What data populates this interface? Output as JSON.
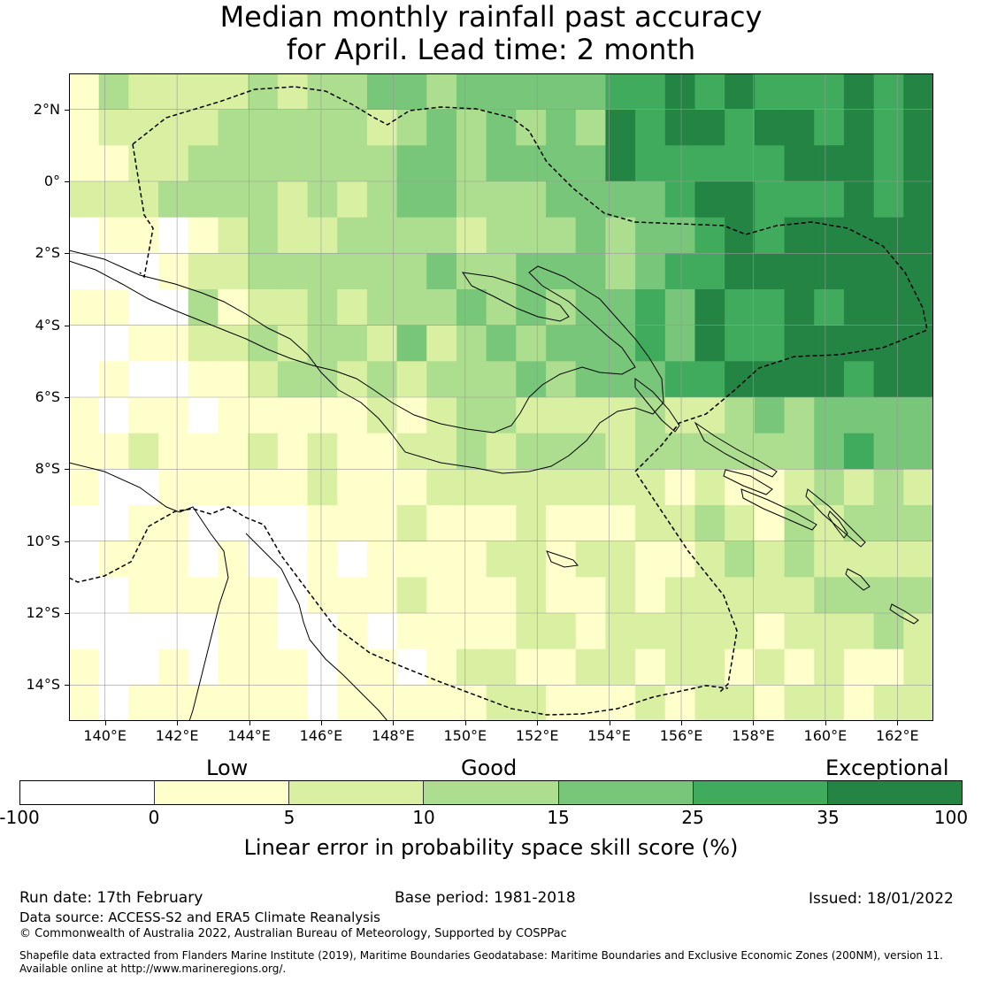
{
  "title": {
    "line1": "Median monthly rainfall past accuracy",
    "line2": "for April. Lead time: 2 month"
  },
  "map": {
    "lon_range": [
      139,
      163
    ],
    "lat_range": [
      -15,
      3
    ],
    "cell_size_deg": 0.833,
    "x_ticks": [
      {
        "value": 140,
        "label": "140°E"
      },
      {
        "value": 142,
        "label": "142°E"
      },
      {
        "value": 144,
        "label": "144°E"
      },
      {
        "value": 146,
        "label": "146°E"
      },
      {
        "value": 148,
        "label": "148°E"
      },
      {
        "value": 150,
        "label": "150°E"
      },
      {
        "value": 152,
        "label": "152°E"
      },
      {
        "value": 154,
        "label": "154°E"
      },
      {
        "value": 156,
        "label": "156°E"
      },
      {
        "value": 158,
        "label": "158°E"
      },
      {
        "value": 160,
        "label": "160°E"
      },
      {
        "value": 162,
        "label": "162°E"
      }
    ],
    "y_ticks": [
      {
        "value": 2,
        "label": "2°N"
      },
      {
        "value": 0,
        "label": "0°"
      },
      {
        "value": -2,
        "label": "2°S"
      },
      {
        "value": -4,
        "label": "4°S"
      },
      {
        "value": -6,
        "label": "6°S"
      },
      {
        "value": -8,
        "label": "8°S"
      },
      {
        "value": -10,
        "label": "10°S"
      },
      {
        "value": -12,
        "label": "12°S"
      },
      {
        "value": -14,
        "label": "14°S"
      }
    ],
    "regions": [
      {
        "name": "Papua New Guinea EEZ boundary",
        "style": "dashed"
      },
      {
        "name": "New Guinea coastline",
        "style": "solid"
      },
      {
        "name": "Cape York coastline",
        "style": "solid"
      },
      {
        "name": "Solomon Islands coastline",
        "style": "solid"
      }
    ]
  },
  "legend": {
    "categories": [
      {
        "label": "Low"
      },
      {
        "label": "Good"
      },
      {
        "label": "Exceptional"
      }
    ],
    "bins": [
      {
        "from": -100,
        "to": 0,
        "color": "#ffffff"
      },
      {
        "from": 0,
        "to": 5,
        "color": "#ffffcc"
      },
      {
        "from": 5,
        "to": 10,
        "color": "#d9f0a3"
      },
      {
        "from": 10,
        "to": 15,
        "color": "#addd8e"
      },
      {
        "from": 15,
        "to": 25,
        "color": "#78c679"
      },
      {
        "from": 25,
        "to": 35,
        "color": "#41ab5d"
      },
      {
        "from": 35,
        "to": 100,
        "color": "#238443"
      }
    ],
    "tick_labels": [
      "-100",
      "0",
      "5",
      "10",
      "15",
      "25",
      "35",
      "100"
    ],
    "title": "Linear error in probability space skill score (%)"
  },
  "footer": {
    "run_date": "Run date: 17th February",
    "base_period": "Base period: 1981-2018",
    "issued": "Issued: 18/01/2022",
    "data_source": "Data source: ACCESS-S2 and ERA5 Climate Reanalysis",
    "copyright": "© Commonwealth of Australia 2022, Australian Bureau of Meteorology, Supported by COSPPac",
    "shapefile_line1": "Shapefile data extracted from Flanders Marine Institute (2019), Maritime Boundaries Geodatabase: Maritime Boundaries and Exclusive Economic Zones (200NM), version 11.",
    "shapefile_line2": "Available online at http://www.marineregions.org/."
  }
}
